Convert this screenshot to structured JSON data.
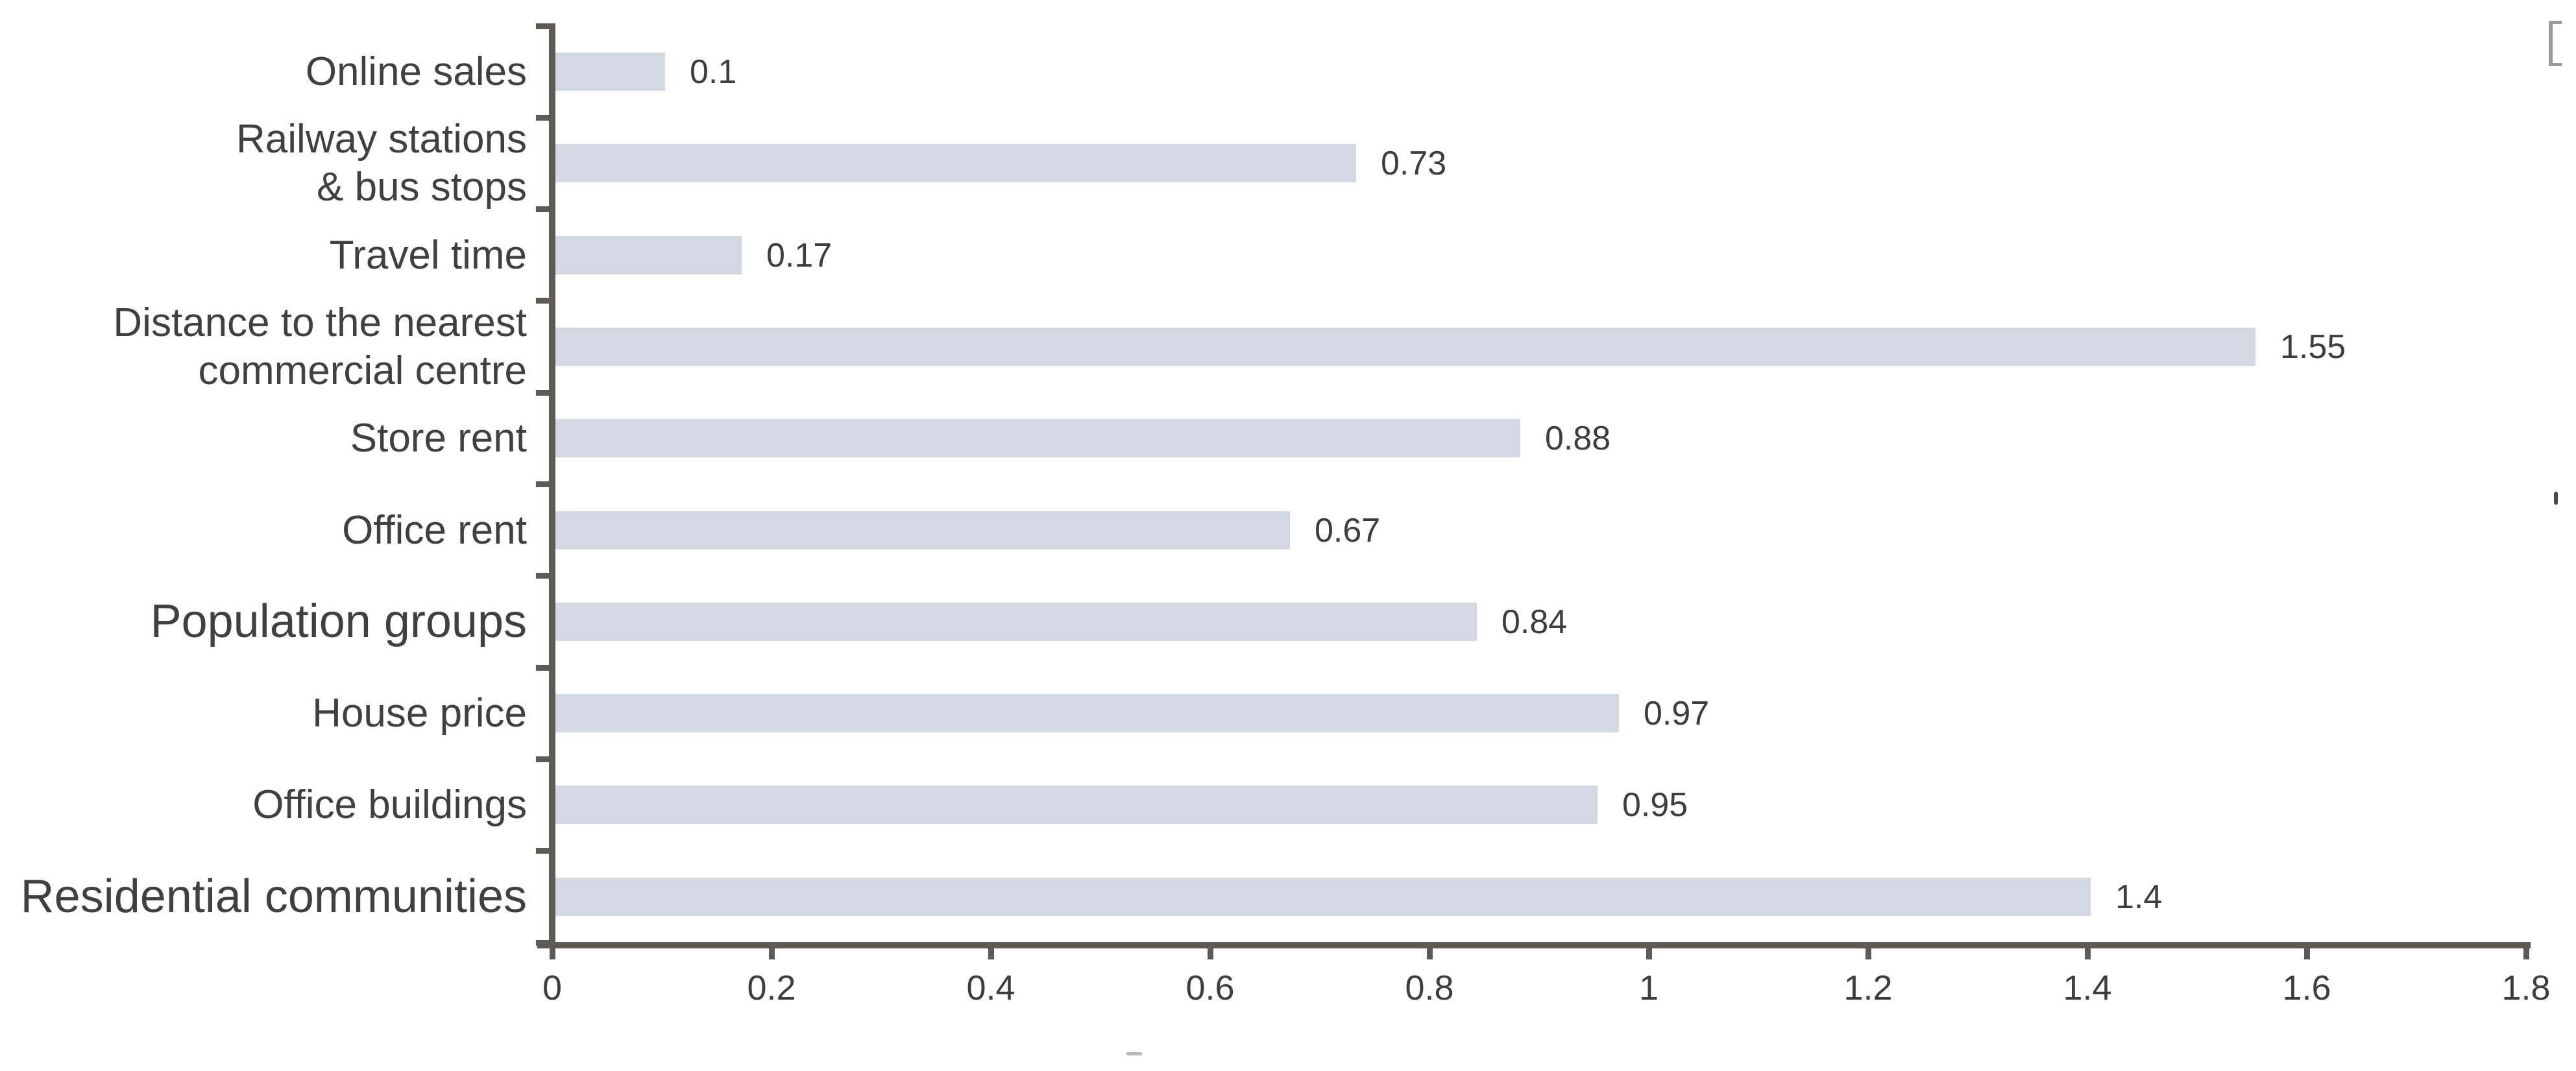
{
  "chart_data": {
    "type": "bar",
    "orientation": "horizontal",
    "title": "",
    "xlabel": "",
    "ylabel": "",
    "grid": false,
    "legend_position": "none",
    "categories": [
      "Online sales",
      "Railway stations\n& bus stops",
      "Travel time",
      "Distance to the nearest\ncommercial centre",
      "Store rent",
      "Office rent",
      "Population groups",
      "House price",
      "Office buildings",
      "Residential communities"
    ],
    "values": [
      0.1,
      0.73,
      0.17,
      1.55,
      0.88,
      0.67,
      0.84,
      0.97,
      0.95,
      1.4
    ],
    "value_labels": [
      "0.1",
      "0.73",
      "0.17",
      "1.55",
      "0.88",
      "0.67",
      "0.84",
      "0.97",
      "0.95",
      "1.4"
    ],
    "large_label_indexes": [
      6,
      9
    ],
    "xlim": [
      0,
      1.8
    ],
    "x_ticks": [
      0,
      0.2,
      0.4,
      0.6,
      0.8,
      1,
      1.2,
      1.4,
      1.6,
      1.8
    ],
    "x_tick_labels": [
      "0",
      "0.2",
      "0.4",
      "0.6",
      "0.8",
      "1",
      "1.2",
      "1.4",
      "1.6",
      "1.8"
    ],
    "bar_color": "#d3d9e3",
    "axis_color": "#5e5b57",
    "text_color": "#3d3d3d"
  }
}
